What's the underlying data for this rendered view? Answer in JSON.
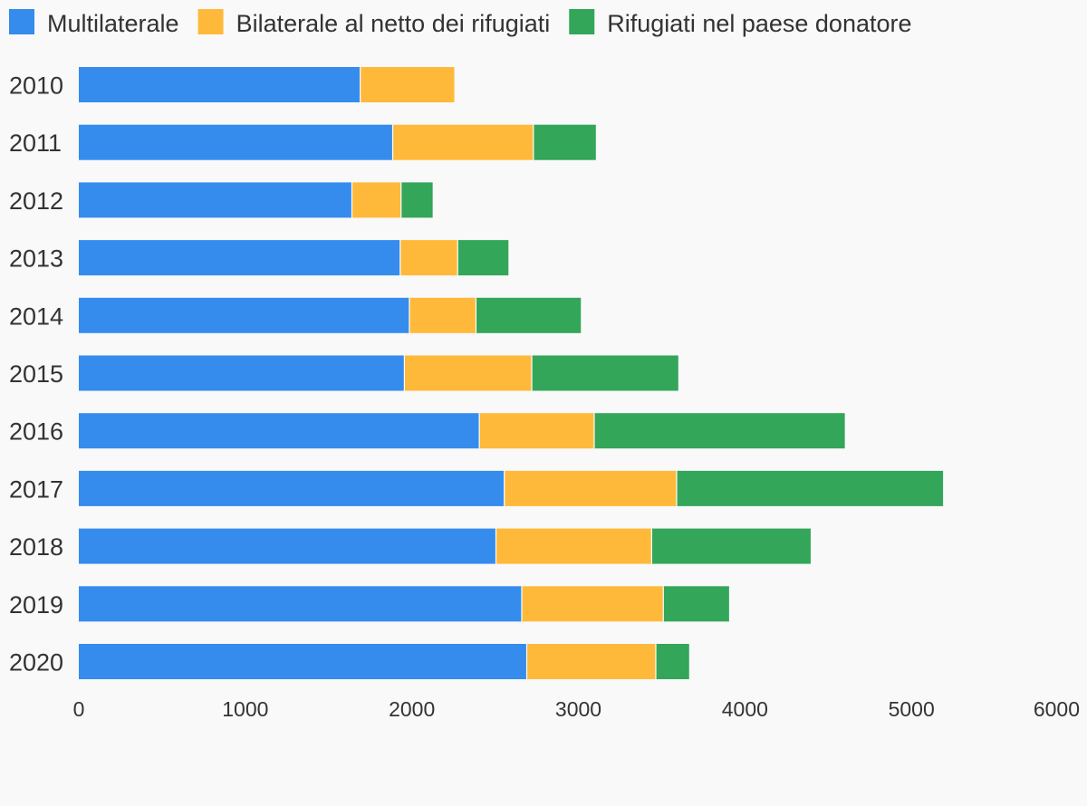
{
  "chart_data": {
    "type": "bar",
    "orientation": "horizontal",
    "stacked": true,
    "categories": [
      "2010",
      "2011",
      "2012",
      "2013",
      "2014",
      "2015",
      "2016",
      "2017",
      "2018",
      "2019",
      "2020"
    ],
    "series": [
      {
        "name": "Multilaterale",
        "color": "#358ced",
        "values": [
          1690,
          1885,
          1640,
          1930,
          1985,
          1955,
          2405,
          2555,
          2505,
          2660,
          2690
        ]
      },
      {
        "name": "Bilaterale al netto dei rifugiati",
        "color": "#ffb93a",
        "values": [
          565,
          845,
          295,
          345,
          400,
          765,
          690,
          1035,
          935,
          850,
          775
        ]
      },
      {
        "name": "Rifugiati nel paese donatore",
        "color": "#33a65a",
        "values": [
          0,
          375,
          190,
          305,
          630,
          880,
          1505,
          1600,
          955,
          395,
          200
        ]
      }
    ],
    "xlim": [
      0,
      6000
    ],
    "xticks": [
      0,
      1000,
      2000,
      3000,
      4000,
      5000,
      6000
    ],
    "grid": false,
    "legend_position": "top-left",
    "title": "",
    "xlabel": "",
    "ylabel": ""
  }
}
